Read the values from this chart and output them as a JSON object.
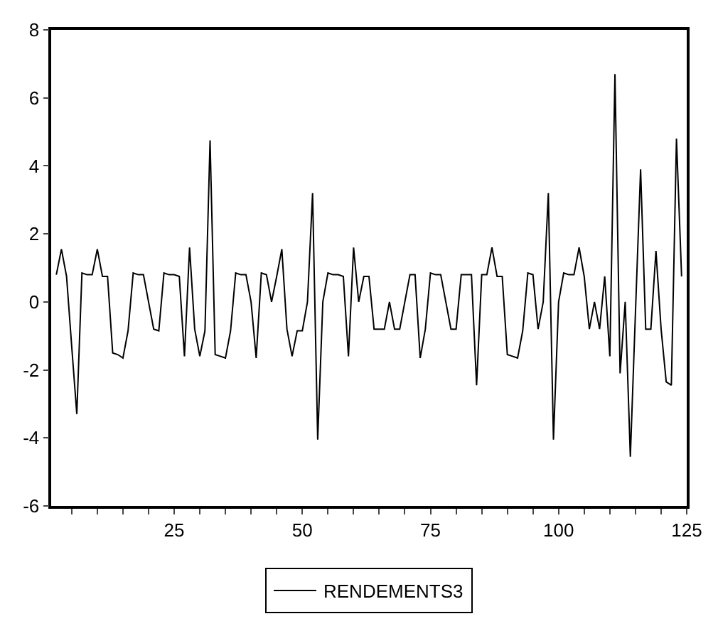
{
  "chart_data": {
    "type": "line",
    "x": [
      2,
      3,
      4,
      5,
      6,
      7,
      8,
      9,
      10,
      11,
      12,
      13,
      14,
      15,
      16,
      17,
      18,
      19,
      20,
      21,
      22,
      23,
      24,
      25,
      26,
      27,
      28,
      29,
      30,
      31,
      32,
      33,
      34,
      35,
      36,
      37,
      38,
      39,
      40,
      41,
      42,
      43,
      44,
      45,
      46,
      47,
      48,
      49,
      50,
      51,
      52,
      53,
      54,
      55,
      56,
      57,
      58,
      59,
      60,
      61,
      62,
      63,
      64,
      65,
      66,
      67,
      68,
      69,
      70,
      71,
      72,
      73,
      74,
      75,
      76,
      77,
      78,
      79,
      80,
      81,
      82,
      83,
      84,
      85,
      86,
      87,
      88,
      89,
      90,
      91,
      92,
      93,
      94,
      95,
      96,
      97,
      98,
      99,
      100,
      101,
      102,
      103,
      104,
      105,
      106,
      107,
      108,
      109,
      110,
      111,
      112,
      113,
      114,
      115,
      116,
      117,
      118,
      119,
      120,
      121,
      122,
      123,
      124
    ],
    "series": [
      {
        "name": "RENDEMENTS3",
        "color": "#000000",
        "values": [
          0.8,
          1.55,
          0.75,
          -1.3,
          -3.3,
          0.85,
          0.8,
          0.8,
          1.55,
          0.75,
          0.75,
          -1.5,
          -1.55,
          -1.65,
          -0.85,
          0.85,
          0.8,
          0.8,
          0,
          -0.8,
          -0.85,
          0.85,
          0.8,
          0.8,
          0.75,
          -1.6,
          1.6,
          -0.8,
          -1.6,
          -0.85,
          4.75,
          -1.55,
          -1.6,
          -1.65,
          -0.85,
          0.85,
          0.8,
          0.8,
          0,
          -1.65,
          0.85,
          0.8,
          0,
          0.75,
          1.55,
          -0.8,
          -1.6,
          -0.85,
          -0.85,
          0,
          3.2,
          -4.05,
          0,
          0.85,
          0.8,
          0.8,
          0.75,
          -1.6,
          1.6,
          0,
          0.75,
          0.75,
          -0.8,
          -0.8,
          -0.8,
          0,
          -0.8,
          -0.8,
          0,
          0.8,
          0.8,
          -1.65,
          -0.8,
          0.85,
          0.8,
          0.8,
          0,
          -0.8,
          -0.8,
          0.8,
          0.8,
          0.8,
          -2.45,
          0.8,
          0.8,
          1.6,
          0.75,
          0.75,
          -1.55,
          -1.6,
          -1.65,
          -0.85,
          0.85,
          0.8,
          -0.8,
          0,
          3.2,
          -4.05,
          0,
          0.85,
          0.8,
          0.8,
          1.6,
          0.75,
          -0.8,
          0,
          -0.8,
          0.75,
          -1.6,
          6.7,
          -2.1,
          0,
          -4.55,
          -0.3,
          3.9,
          -0.8,
          -0.8,
          1.5,
          -0.8,
          -2.35,
          -2.45,
          4.8,
          0.75
        ]
      }
    ],
    "xlim": [
      1,
      125
    ],
    "xticks": [
      {
        "value": 5,
        "label": null
      },
      {
        "value": 10,
        "label": null
      },
      {
        "value": 15,
        "label": null
      },
      {
        "value": 20,
        "label": null
      },
      25,
      {
        "value": 30,
        "label": null
      },
      {
        "value": 35,
        "label": null
      },
      {
        "value": 40,
        "label": null
      },
      {
        "value": 45,
        "label": null
      },
      50,
      {
        "value": 55,
        "label": null
      },
      {
        "value": 60,
        "label": null
      },
      {
        "value": 65,
        "label": null
      },
      {
        "value": 70,
        "label": null
      },
      75,
      {
        "value": 80,
        "label": null
      },
      {
        "value": 85,
        "label": null
      },
      {
        "value": 90,
        "label": null
      },
      {
        "value": 95,
        "label": null
      },
      100,
      {
        "value": 105,
        "label": null
      },
      {
        "value": 110,
        "label": null
      },
      {
        "value": 115,
        "label": null
      },
      {
        "value": 120,
        "label": null
      },
      125
    ],
    "ylim": [
      -6,
      8
    ],
    "yticks": [
      -6,
      -4,
      -2,
      0,
      2,
      4,
      6,
      8
    ],
    "grid": false,
    "legend": "bottom",
    "marker": "none",
    "line_style": "solid"
  }
}
